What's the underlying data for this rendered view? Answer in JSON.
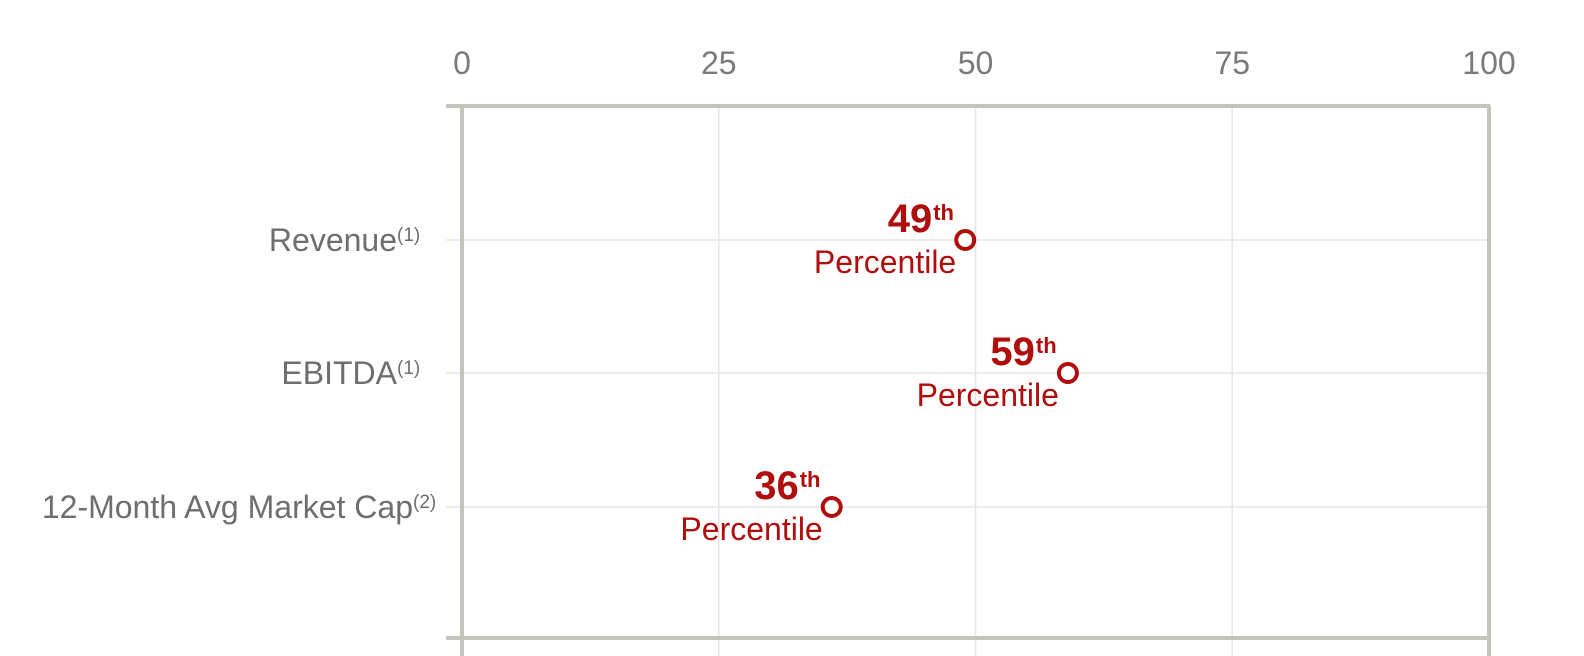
{
  "chart_data": {
    "type": "scatter",
    "x_ticks": [
      "0",
      "25",
      "50",
      "75",
      "100"
    ],
    "xlim": [
      0,
      100
    ],
    "grid": true,
    "categories": [
      {
        "label": "Revenue",
        "sup": "(1)"
      },
      {
        "label": "EBITDA",
        "sup": "(1)"
      },
      {
        "label": "12-Month Avg Market Cap",
        "sup": "(2)"
      }
    ],
    "values": [
      49,
      59,
      36
    ],
    "point_labels": [
      {
        "number": "49",
        "suffix": "th",
        "word": "Percentile"
      },
      {
        "number": "59",
        "suffix": "th",
        "word": "Percentile"
      },
      {
        "number": "36",
        "suffix": "th",
        "word": "Percentile"
      }
    ],
    "colors": {
      "point": "#b00d0d",
      "axis": "#c4c4bc",
      "grid": "#e6e6e6",
      "tick_text": "#7a7a7a"
    }
  }
}
